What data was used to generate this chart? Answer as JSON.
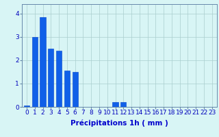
{
  "categories": [
    0,
    1,
    2,
    3,
    4,
    5,
    6,
    7,
    8,
    9,
    10,
    11,
    12,
    13,
    14,
    15,
    16,
    17,
    18,
    19,
    20,
    21,
    22,
    23
  ],
  "values": [
    0.05,
    3.0,
    3.85,
    2.5,
    2.4,
    1.55,
    1.5,
    0,
    0,
    0,
    0,
    0.2,
    0.2,
    0,
    0,
    0,
    0,
    0,
    0,
    0,
    0,
    0,
    0,
    0
  ],
  "bar_color": "#1060e8",
  "bar_edge_color": "#0040cc",
  "background_color": "#d8f5f5",
  "grid_color": "#aacece",
  "axis_color": "#6688aa",
  "tick_color": "#0000bb",
  "xlabel": "Précipitations 1h ( mm )",
  "xlabel_color": "#0000cc",
  "xlabel_fontsize": 7.5,
  "ylim": [
    0,
    4.4
  ],
  "yticks": [
    0,
    1,
    2,
    3,
    4
  ],
  "xlim": [
    -0.6,
    23.6
  ],
  "tick_fontsize": 6.5
}
